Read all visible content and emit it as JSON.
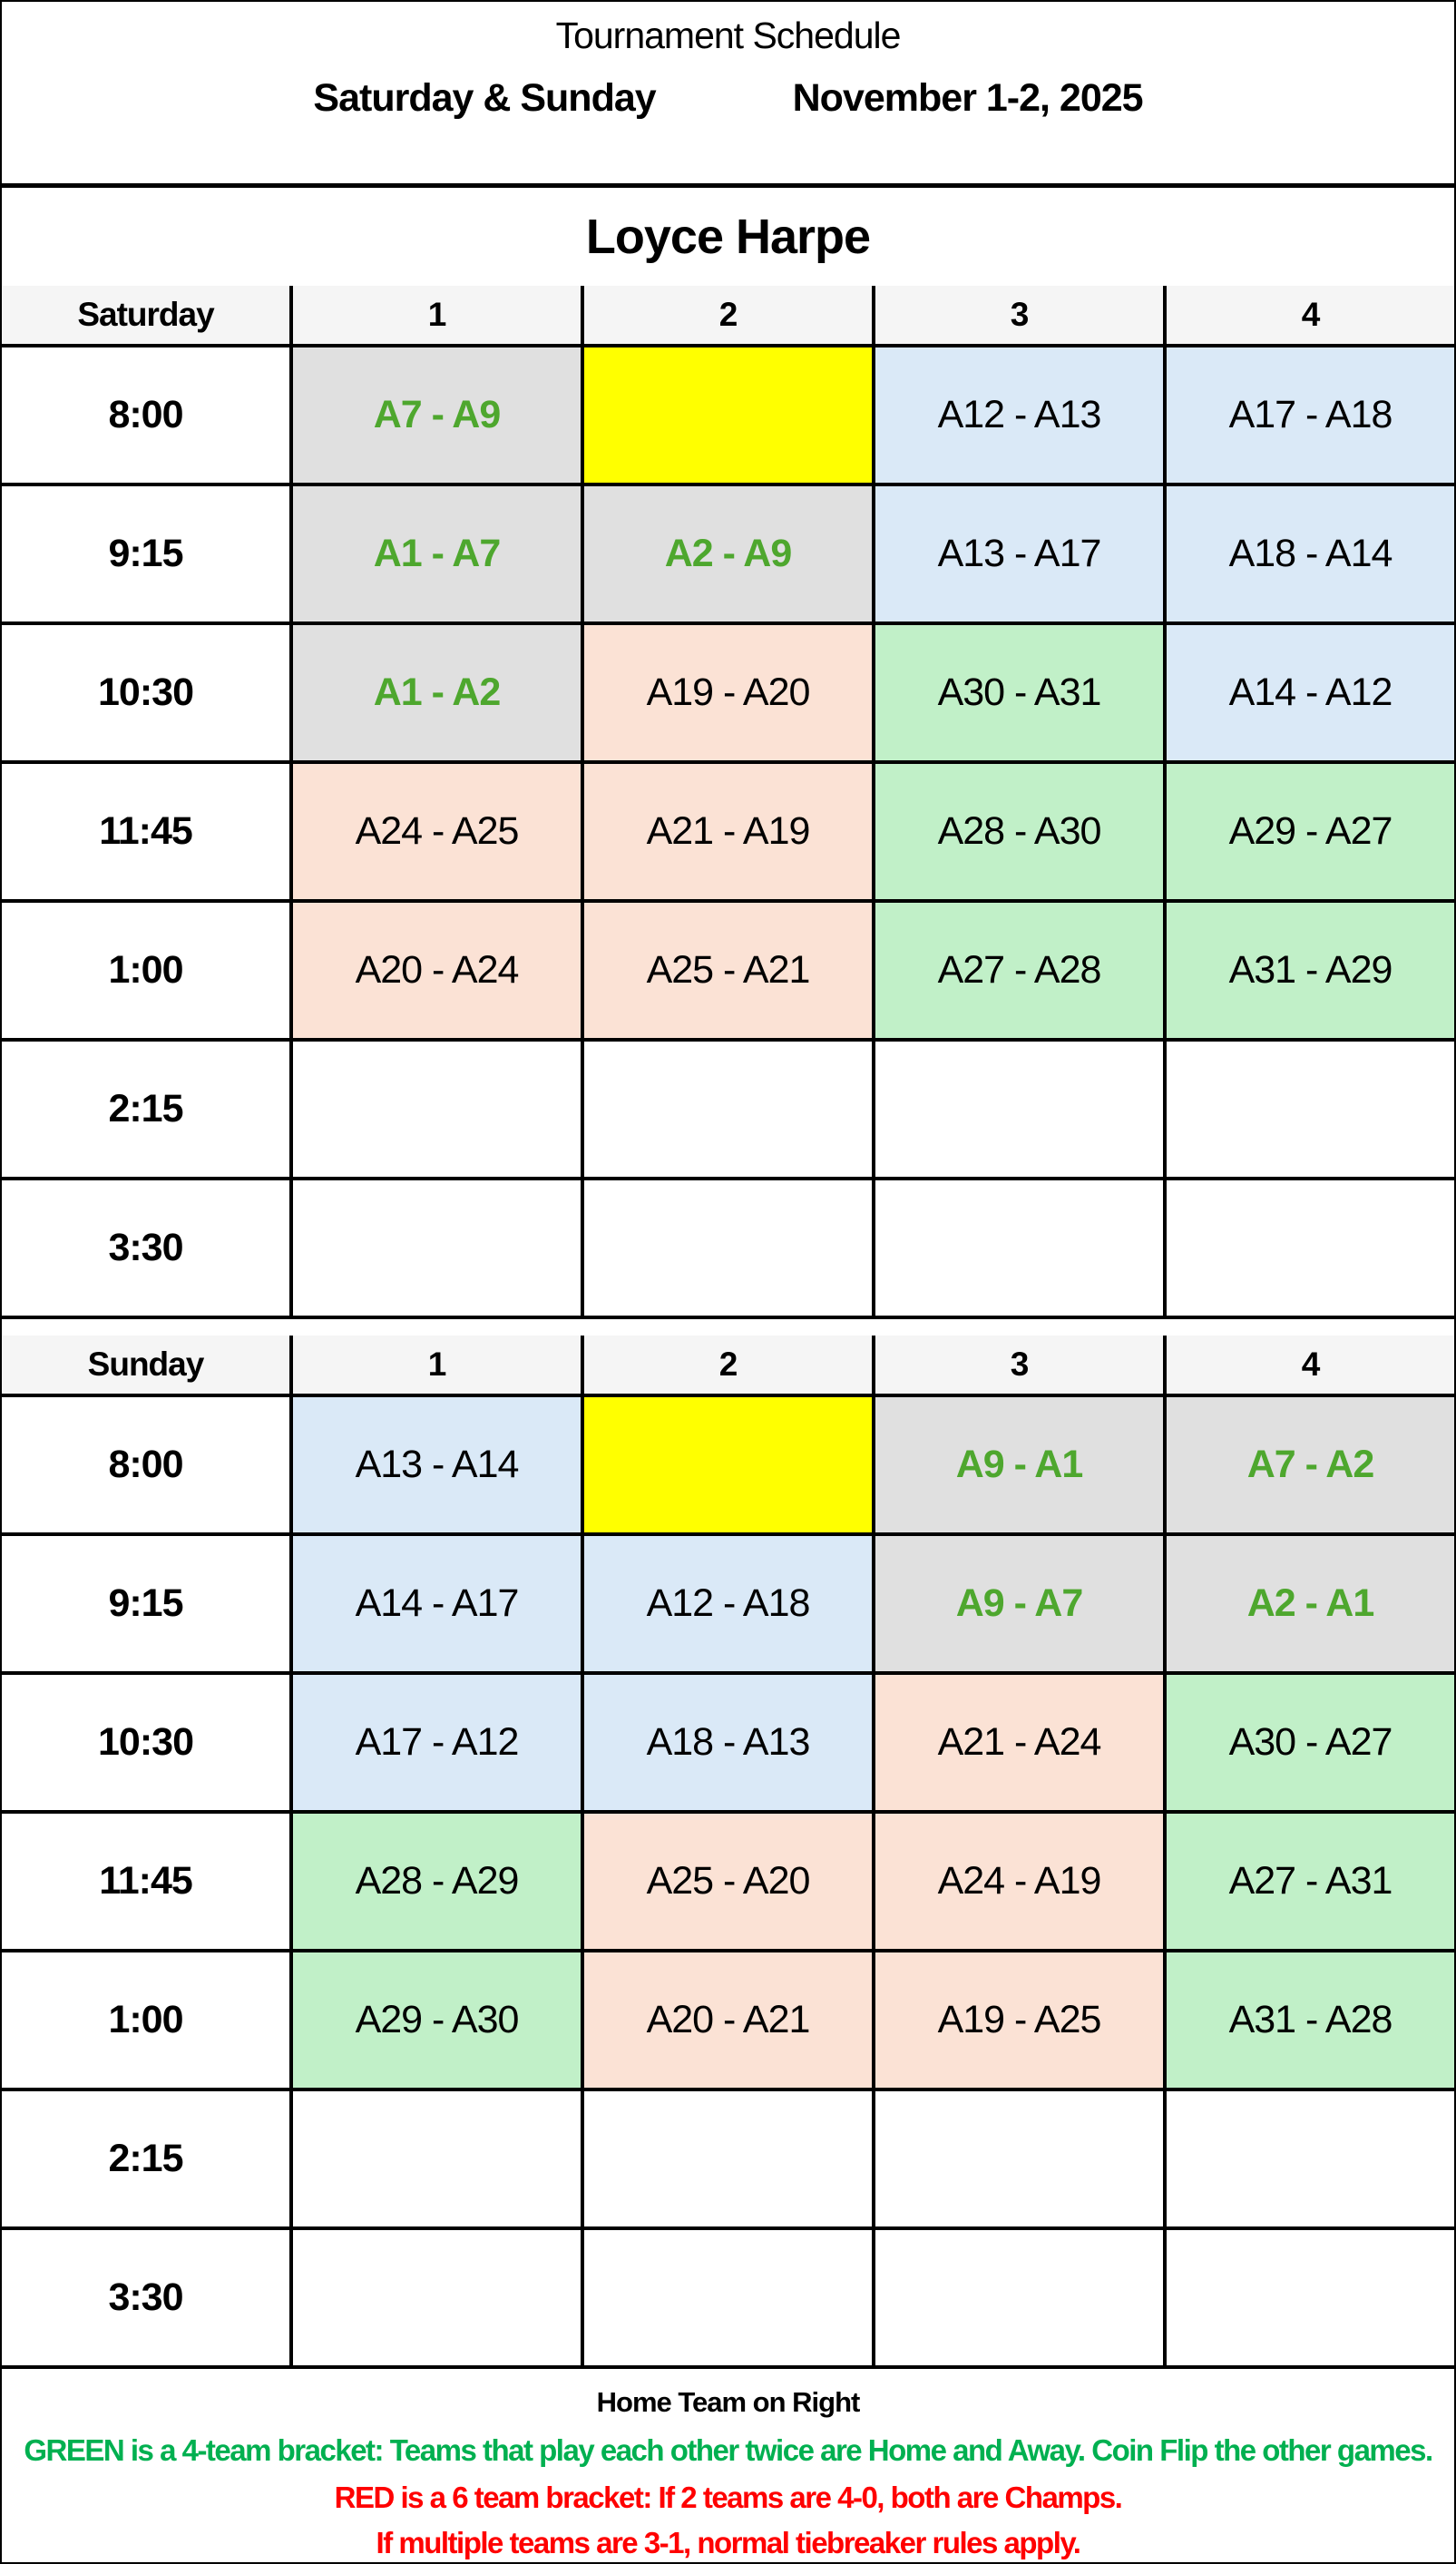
{
  "header": {
    "title": "Tournament Schedule",
    "days": "Saturday & Sunday",
    "dates": "November 1-2, 2025"
  },
  "venue": "Loyce Harpe",
  "colors": {
    "gray": "#e0e0e0",
    "yellow": "#ffff00",
    "blue": "#dae9f7",
    "peach": "#fbe2d5",
    "green": "#c1f0c8",
    "green_text": "#4ea72e",
    "footer_green": "#00b050",
    "footer_red": "#ff0000"
  },
  "days": [
    {
      "label": "Saturday",
      "fields": [
        "1",
        "2",
        "3",
        "4"
      ],
      "slots": [
        {
          "time": "8:00",
          "games": [
            {
              "text": "A7 - A9",
              "color": "gray"
            },
            {
              "text": "",
              "color": "yellow"
            },
            {
              "text": "A12 - A13",
              "color": "blue"
            },
            {
              "text": "A17 - A18",
              "color": "blue"
            }
          ]
        },
        {
          "time": "9:15",
          "games": [
            {
              "text": "A1 - A7",
              "color": "gray"
            },
            {
              "text": "A2 - A9",
              "color": "gray"
            },
            {
              "text": "A13 - A17",
              "color": "blue"
            },
            {
              "text": "A18 - A14",
              "color": "blue"
            }
          ]
        },
        {
          "time": "10:30",
          "games": [
            {
              "text": "A1 - A2",
              "color": "gray"
            },
            {
              "text": "A19 - A20",
              "color": "peach"
            },
            {
              "text": "A30 - A31",
              "color": "green"
            },
            {
              "text": "A14 - A12",
              "color": "blue"
            }
          ]
        },
        {
          "time": "11:45",
          "games": [
            {
              "text": "A24 - A25",
              "color": "peach"
            },
            {
              "text": "A21 - A19",
              "color": "peach"
            },
            {
              "text": "A28 - A30",
              "color": "green"
            },
            {
              "text": "A29 - A27",
              "color": "green"
            }
          ]
        },
        {
          "time": "1:00",
          "games": [
            {
              "text": "A20 - A24",
              "color": "peach"
            },
            {
              "text": "A25 - A21",
              "color": "peach"
            },
            {
              "text": "A27 - A28",
              "color": "green"
            },
            {
              "text": "A31 - A29",
              "color": "green"
            }
          ]
        },
        {
          "time": "2:15",
          "games": [
            {
              "text": "",
              "color": "empty"
            },
            {
              "text": "",
              "color": "empty"
            },
            {
              "text": "",
              "color": "empty"
            },
            {
              "text": "",
              "color": "empty"
            }
          ]
        },
        {
          "time": "3:30",
          "games": [
            {
              "text": "",
              "color": "empty"
            },
            {
              "text": "",
              "color": "empty"
            },
            {
              "text": "",
              "color": "empty"
            },
            {
              "text": "",
              "color": "empty"
            }
          ]
        }
      ]
    },
    {
      "label": "Sunday",
      "fields": [
        "1",
        "2",
        "3",
        "4"
      ],
      "slots": [
        {
          "time": "8:00",
          "games": [
            {
              "text": "A13 - A14",
              "color": "blue"
            },
            {
              "text": "",
              "color": "yellow"
            },
            {
              "text": "A9 - A1",
              "color": "gray"
            },
            {
              "text": "A7 - A2",
              "color": "gray"
            }
          ]
        },
        {
          "time": "9:15",
          "games": [
            {
              "text": "A14 - A17",
              "color": "blue"
            },
            {
              "text": "A12 - A18",
              "color": "blue"
            },
            {
              "text": "A9 - A7",
              "color": "gray"
            },
            {
              "text": "A2 - A1",
              "color": "gray"
            }
          ]
        },
        {
          "time": "10:30",
          "games": [
            {
              "text": "A17 - A12",
              "color": "blue"
            },
            {
              "text": "A18 - A13",
              "color": "blue"
            },
            {
              "text": "A21 - A24",
              "color": "peach"
            },
            {
              "text": "A30 - A27",
              "color": "green"
            }
          ]
        },
        {
          "time": "11:45",
          "games": [
            {
              "text": "A28 - A29",
              "color": "green"
            },
            {
              "text": "A25 - A20",
              "color": "peach"
            },
            {
              "text": "A24 - A19",
              "color": "peach"
            },
            {
              "text": "A27 - A31",
              "color": "green"
            }
          ]
        },
        {
          "time": "1:00",
          "games": [
            {
              "text": "A29 - A30",
              "color": "green"
            },
            {
              "text": "A20 - A21",
              "color": "peach"
            },
            {
              "text": "A19 - A25",
              "color": "peach"
            },
            {
              "text": "A31 - A28",
              "color": "green"
            }
          ]
        },
        {
          "time": "2:15",
          "games": [
            {
              "text": "",
              "color": "empty"
            },
            {
              "text": "",
              "color": "empty"
            },
            {
              "text": "",
              "color": "empty"
            },
            {
              "text": "",
              "color": "empty"
            }
          ]
        },
        {
          "time": "3:30",
          "games": [
            {
              "text": "",
              "color": "empty"
            },
            {
              "text": "",
              "color": "empty"
            },
            {
              "text": "",
              "color": "empty"
            },
            {
              "text": "",
              "color": "empty"
            }
          ]
        }
      ]
    }
  ],
  "footer": {
    "home_note": "Home Team on Right",
    "green_note": "GREEN is a 4-team bracket:  Teams that play each other twice are Home and Away.  Coin Flip the other games.",
    "red_note_1": "RED is a 6 team bracket:  If 2 teams are 4-0, both are Champs.",
    "red_note_2": "If multiple teams are 3-1, normal tiebreaker rules apply."
  }
}
